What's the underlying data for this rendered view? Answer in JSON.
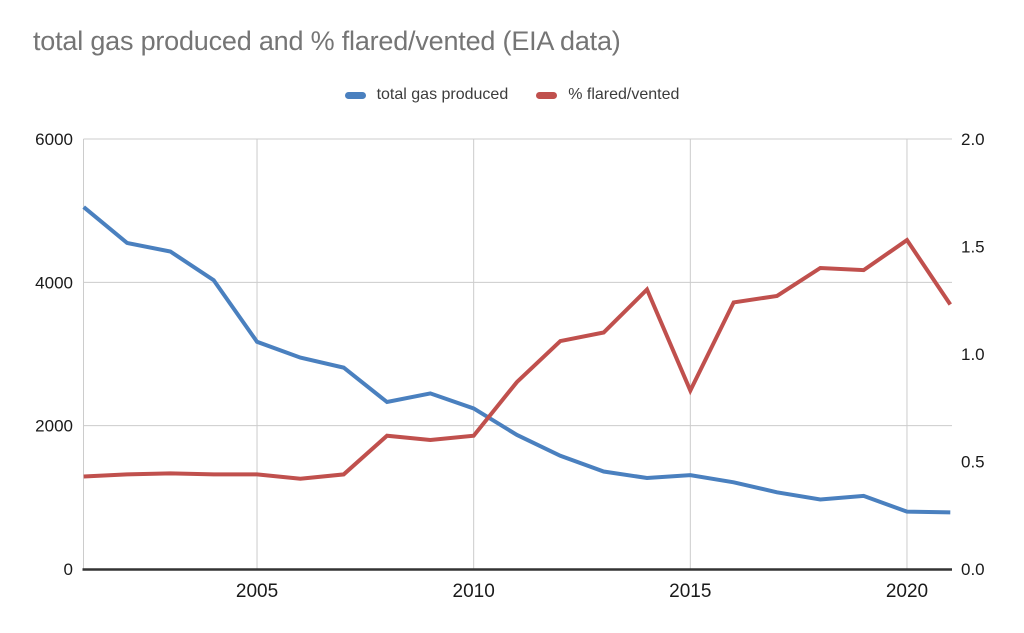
{
  "title": "total gas produced and % flared/vented (EIA data)",
  "legend": {
    "items": [
      {
        "label": "total gas produced",
        "color": "#4a80bf"
      },
      {
        "label": "% flared/vented",
        "color": "#c0504d"
      }
    ]
  },
  "chart_data": {
    "type": "line",
    "title": "total gas produced and % flared/vented (EIA data)",
    "x": [
      2001,
      2002,
      2003,
      2004,
      2005,
      2006,
      2007,
      2008,
      2009,
      2010,
      2011,
      2012,
      2013,
      2014,
      2015,
      2016,
      2017,
      2018,
      2019,
      2020,
      2021
    ],
    "series": [
      {
        "name": "total gas produced",
        "axis": "left",
        "color": "#4a80bf",
        "values": [
          5050,
          4550,
          4430,
          4030,
          3170,
          2950,
          2810,
          2330,
          2450,
          2240,
          1870,
          1580,
          1360,
          1270,
          1310,
          1210,
          1070,
          970,
          1020,
          800,
          790
        ]
      },
      {
        "name": "% flared/vented",
        "axis": "right",
        "color": "#c0504d",
        "values": [
          0.43,
          0.44,
          0.445,
          0.44,
          0.44,
          0.42,
          0.44,
          0.62,
          0.6,
          0.62,
          0.87,
          1.06,
          1.1,
          1.3,
          0.83,
          1.24,
          1.27,
          1.4,
          1.39,
          1.53,
          1.23
        ]
      }
    ],
    "axes": {
      "left": {
        "range": [
          0,
          6000
        ],
        "tick_values": [
          0,
          2000,
          4000,
          6000
        ],
        "tick_labels": [
          "0",
          "2000",
          "4000",
          "6000"
        ]
      },
      "right": {
        "range": [
          0,
          2
        ],
        "tick_values": [
          0,
          0.5,
          1,
          1.5,
          2
        ],
        "tick_labels": [
          "0.0",
          "0.5",
          "1.0",
          "1.5",
          "2.0"
        ]
      },
      "x": {
        "range": [
          2001,
          2021
        ],
        "tick_values": [
          2005,
          2010,
          2015,
          2020
        ],
        "tick_labels": [
          "2005",
          "2010",
          "2015",
          "2020"
        ]
      }
    },
    "grid": true,
    "legend_position": "top"
  },
  "colors": {
    "background": "#ffffff",
    "grid": "#cccccc",
    "axis_line": "#333333",
    "tick_label": "#1a1a1a",
    "title_text": "#757575",
    "legend_text": "#3c3c3c"
  }
}
